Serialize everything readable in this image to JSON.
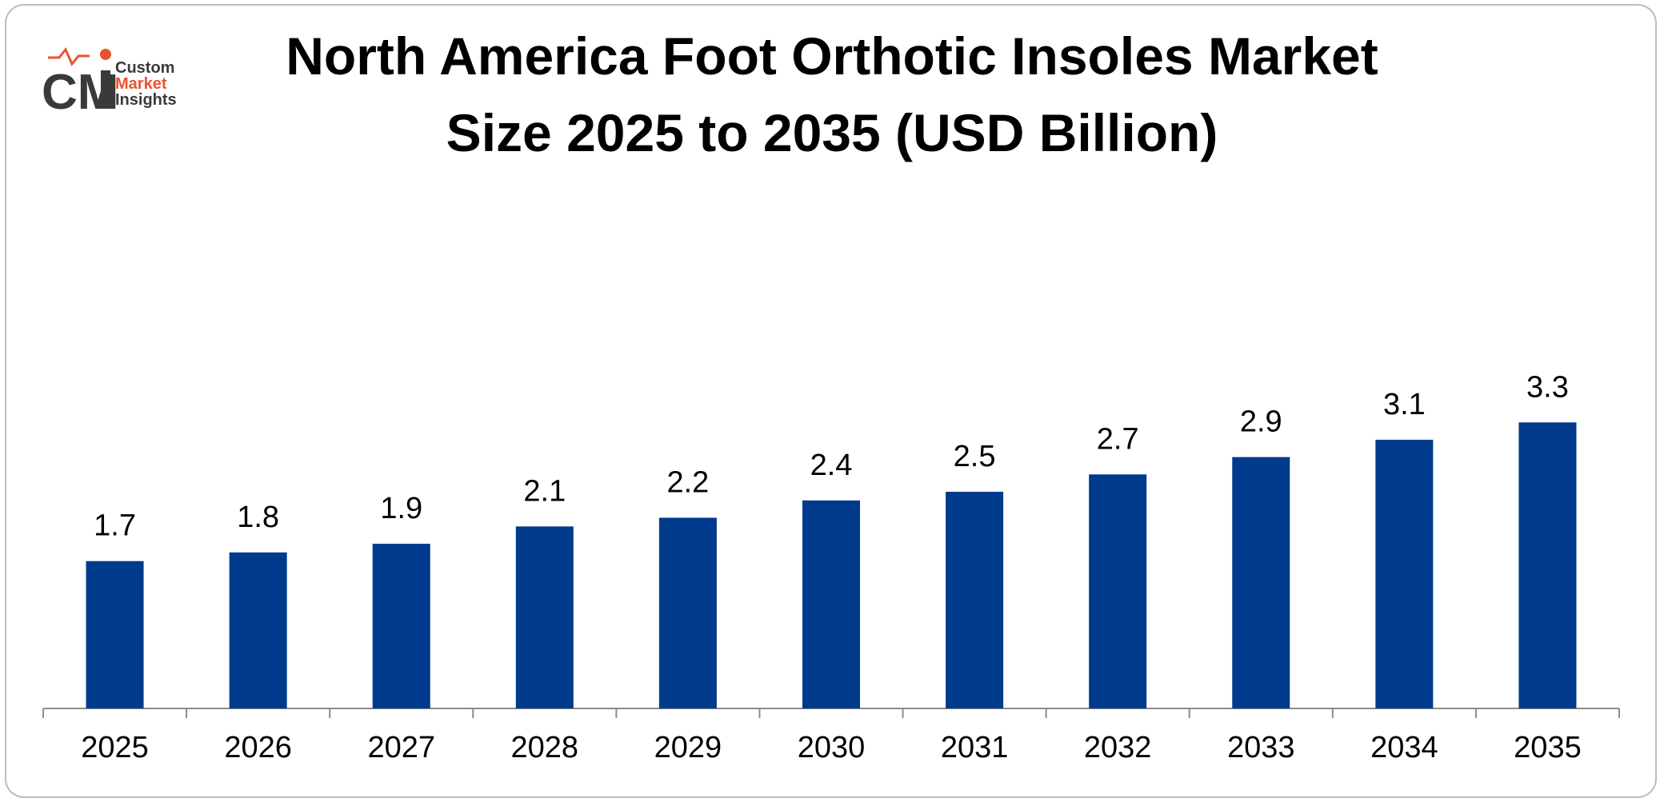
{
  "logo": {
    "mark": "CMI",
    "line1": "Custom",
    "line2": "Market",
    "line3": "Insights"
  },
  "colors": {
    "bar": "#003A8C",
    "axis": "#8c8c8c",
    "logo_dark": "#3a3a3a",
    "logo_accent": "#e8542f"
  },
  "chart_data": {
    "type": "bar",
    "title_line1": "North America Foot Orthotic Insoles Market",
    "title_line2": "Size 2025 to 2035 (USD Billion)",
    "categories": [
      "2025",
      "2026",
      "2027",
      "2028",
      "2029",
      "2030",
      "2031",
      "2032",
      "2033",
      "2034",
      "2035"
    ],
    "values": [
      1.7,
      1.8,
      1.9,
      2.1,
      2.2,
      2.4,
      2.5,
      2.7,
      2.9,
      3.1,
      3.3
    ],
    "value_labels": [
      "1.7",
      "1.8",
      "1.9",
      "2.1",
      "2.2",
      "2.4",
      "2.5",
      "2.7",
      "2.9",
      "3.1",
      "3.3"
    ],
    "xlabel": "",
    "ylabel": "",
    "ylim": [
      0,
      3.5
    ],
    "grid": false,
    "legend": "none"
  }
}
